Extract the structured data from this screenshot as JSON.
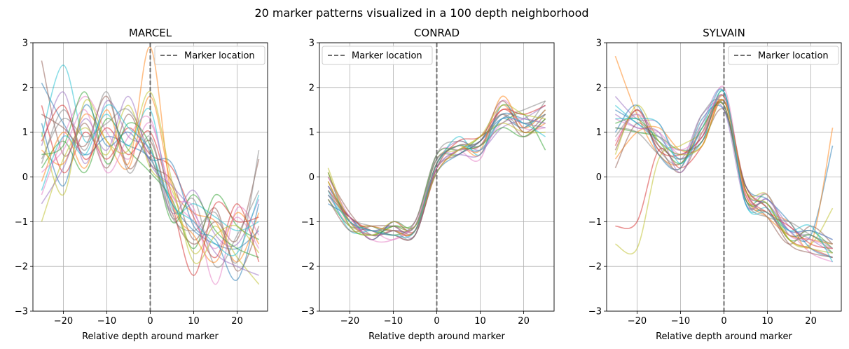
{
  "figure": {
    "title": "20 marker patterns visualized in a 100 depth neighborhood"
  },
  "colors": [
    "#1f77b4",
    "#ff7f0e",
    "#2ca02c",
    "#d62728",
    "#9467bd",
    "#8c564b",
    "#e377c2",
    "#7f7f7f",
    "#bcbd22",
    "#17becf"
  ],
  "chart_data": [
    {
      "type": "line",
      "title": "MARCEL",
      "xlabel": "Relative depth around marker",
      "ylabel": "",
      "xlim": [
        -27,
        27
      ],
      "ylim": [
        -3,
        3
      ],
      "xticks": [
        -20,
        -10,
        0,
        10,
        20
      ],
      "yticks": [
        -3,
        -2,
        -1,
        0,
        1,
        2,
        3
      ],
      "grid": true,
      "legend": {
        "location": "top-right",
        "entries": [
          "Marker location"
        ]
      },
      "marker_x": 0,
      "series_count": 20,
      "x": [
        -25,
        -20,
        -15,
        -10,
        -5,
        0,
        5,
        10,
        15,
        20,
        25
      ],
      "series": [
        {
          "values": [
            2.1,
            1.2,
            0.5,
            0.9,
            0.7,
            0.4,
            -0.6,
            -1.2,
            -1.5,
            -1.6,
            -1.2
          ]
        },
        {
          "values": [
            0.6,
            0.3,
            1.4,
            0.8,
            0.2,
            1.8,
            -0.2,
            -0.8,
            -1.0,
            -1.9,
            -0.8
          ]
        },
        {
          "values": [
            0.2,
            0.8,
            0.1,
            1.3,
            0.6,
            0.1,
            -0.5,
            -1.6,
            -0.4,
            -1.1,
            -1.4
          ]
        },
        {
          "values": [
            1.6,
            0.1,
            1.0,
            0.4,
            1.1,
            0.5,
            0.2,
            -0.9,
            -1.8,
            -0.6,
            -1.9
          ]
        },
        {
          "values": [
            0.7,
            1.9,
            0.3,
            1.7,
            0.9,
            0.6,
            -0.8,
            -0.3,
            -1.3,
            -1.5,
            -0.5
          ]
        },
        {
          "values": [
            2.6,
            0.5,
            1.2,
            0.2,
            1.4,
            0.3,
            -0.1,
            -1.4,
            -0.7,
            -2.1,
            -1.1
          ]
        },
        {
          "values": [
            -0.4,
            0.9,
            1.8,
            1.0,
            0.4,
            1.2,
            -0.4,
            -1.0,
            -1.6,
            -0.9,
            -1.6
          ]
        },
        {
          "values": [
            0.3,
            1.5,
            0.6,
            1.9,
            0.1,
            0.9,
            -0.9,
            -0.5,
            -2.0,
            -1.3,
            -0.3
          ]
        },
        {
          "values": [
            -1.0,
            0.4,
            1.1,
            0.5,
            1.6,
            0.2,
            -0.3,
            -1.7,
            -1.1,
            -1.8,
            -2.4
          ]
        },
        {
          "values": [
            0.9,
            2.5,
            0.8,
            1.4,
            0.7,
            1.5,
            -0.7,
            -0.6,
            -0.9,
            -1.2,
            -1.0
          ]
        },
        {
          "values": [
            1.2,
            -0.2,
            1.6,
            0.7,
            1.0,
            0.4,
            0.3,
            -1.1,
            -1.4,
            -2.3,
            -0.6
          ]
        },
        {
          "values": [
            -0.1,
            1.0,
            0.2,
            1.5,
            0.3,
            2.9,
            -0.5,
            -1.3,
            -1.9,
            -0.8,
            -1.5
          ]
        },
        {
          "values": [
            0.5,
            0.7,
            1.9,
            0.3,
            1.2,
            0.7,
            -1.0,
            -0.4,
            -1.2,
            -1.6,
            -1.8
          ]
        },
        {
          "values": [
            0.8,
            1.6,
            0.4,
            1.1,
            0.5,
            1.0,
            -0.6,
            -2.2,
            -0.6,
            -1.0,
            -0.9
          ]
        },
        {
          "values": [
            -0.6,
            0.2,
            1.3,
            0.6,
            1.8,
            0.3,
            -0.2,
            -0.8,
            -1.7,
            -2.0,
            -2.2
          ]
        },
        {
          "values": [
            1.4,
            1.1,
            0.7,
            1.8,
            0.2,
            0.8,
            -0.8,
            -1.5,
            -1.0,
            -1.4,
            0.4
          ]
        },
        {
          "values": [
            0.1,
            0.6,
            1.5,
            0.1,
            0.9,
            1.3,
            -0.4,
            -0.7,
            -2.4,
            -0.7,
            -1.3
          ]
        },
        {
          "values": [
            0.4,
            1.3,
            0.9,
            1.2,
            1.5,
            0.5,
            -0.9,
            -1.2,
            -0.8,
            -1.9,
            0.6
          ]
        },
        {
          "values": [
            1.0,
            -0.4,
            1.7,
            0.8,
            0.6,
            1.9,
            -0.1,
            -1.9,
            -1.3,
            -1.1,
            -1.7
          ]
        },
        {
          "values": [
            -0.3,
            0.9,
            0.5,
            1.6,
            1.1,
            0.6,
            -0.6,
            -1.0,
            -1.5,
            -1.7,
            -0.4
          ]
        }
      ]
    },
    {
      "type": "line",
      "title": "CONRAD",
      "xlabel": "Relative depth around marker",
      "ylabel": "",
      "xlim": [
        -27,
        27
      ],
      "ylim": [
        -3,
        3
      ],
      "xticks": [
        -20,
        -10,
        0,
        10,
        20
      ],
      "yticks": [
        -3,
        -2,
        -1,
        0,
        1,
        2,
        3
      ],
      "grid": true,
      "legend": {
        "location": "top-left",
        "entries": [
          "Marker location"
        ]
      },
      "marker_x": 0,
      "series_count": 20,
      "x": [
        -25,
        -20,
        -15,
        -10,
        -5,
        0,
        5,
        10,
        15,
        20,
        25
      ],
      "series": [
        {
          "values": [
            -0.2,
            -0.9,
            -1.2,
            -1.1,
            -1.1,
            0.2,
            0.6,
            0.8,
            1.3,
            1.1,
            1.5
          ]
        },
        {
          "values": [
            0.1,
            -1.0,
            -1.3,
            -1.2,
            -1.2,
            0.3,
            0.7,
            0.5,
            1.6,
            1.0,
            1.2
          ]
        },
        {
          "values": [
            -0.5,
            -1.1,
            -1.1,
            -1.3,
            -1.0,
            0.4,
            0.5,
            0.9,
            1.2,
            1.4,
            0.6
          ]
        },
        {
          "values": [
            -0.3,
            -0.9,
            -1.4,
            -1.0,
            -1.2,
            0.1,
            0.6,
            0.7,
            1.5,
            1.2,
            1.4
          ]
        },
        {
          "values": [
            -0.1,
            -1.0,
            -1.2,
            -1.1,
            -1.3,
            0.3,
            0.8,
            0.6,
            1.1,
            1.3,
            1.6
          ]
        },
        {
          "values": [
            0.0,
            -0.8,
            -1.3,
            -1.2,
            -1.1,
            0.2,
            0.5,
            0.8,
            1.4,
            0.9,
            1.3
          ]
        },
        {
          "values": [
            -0.4,
            -1.1,
            -1.2,
            -1.4,
            -1.0,
            0.5,
            0.6,
            0.4,
            1.7,
            1.1,
            1.1
          ]
        },
        {
          "values": [
            -0.2,
            -0.9,
            -1.1,
            -1.2,
            -1.2,
            0.3,
            0.7,
            0.7,
            1.3,
            1.5,
            1.7
          ]
        },
        {
          "values": [
            0.2,
            -1.0,
            -1.3,
            -1.1,
            -1.1,
            0.4,
            0.6,
            0.9,
            1.2,
            1.0,
            1.0
          ]
        },
        {
          "values": [
            -0.3,
            -1.2,
            -1.2,
            -1.3,
            -1.3,
            0.2,
            0.9,
            0.5,
            1.6,
            1.2,
            1.4
          ]
        },
        {
          "values": [
            -0.6,
            -0.9,
            -1.4,
            -1.0,
            -1.1,
            0.1,
            0.5,
            0.8,
            1.4,
            1.3,
            1.2
          ]
        },
        {
          "values": [
            -0.1,
            -1.0,
            -1.1,
            -1.2,
            -1.2,
            0.3,
            0.7,
            0.6,
            1.8,
            1.1,
            1.5
          ]
        },
        {
          "values": [
            0.1,
            -1.1,
            -1.3,
            -1.1,
            -1.0,
            0.5,
            0.6,
            0.7,
            1.1,
            0.9,
            1.3
          ]
        },
        {
          "values": [
            -0.4,
            -0.9,
            -1.2,
            -1.3,
            -1.3,
            0.2,
            0.8,
            0.9,
            1.5,
            1.4,
            1.6
          ]
        },
        {
          "values": [
            -0.2,
            -1.0,
            -1.3,
            -1.2,
            -1.1,
            0.4,
            0.5,
            0.5,
            1.3,
            1.2,
            1.1
          ]
        },
        {
          "values": [
            -0.5,
            -1.2,
            -1.1,
            -1.1,
            -1.2,
            0.3,
            0.7,
            0.8,
            1.7,
            1.0,
            1.4
          ]
        },
        {
          "values": [
            0.0,
            -0.9,
            -1.4,
            -1.4,
            -1.0,
            0.2,
            0.6,
            0.6,
            1.2,
            1.3,
            1.2
          ]
        },
        {
          "values": [
            -0.3,
            -1.0,
            -1.2,
            -1.2,
            -1.3,
            0.5,
            0.8,
            0.7,
            1.4,
            1.1,
            1.7
          ]
        },
        {
          "values": [
            -0.1,
            -1.1,
            -1.3,
            -1.0,
            -1.1,
            0.1,
            0.6,
            0.9,
            1.6,
            1.4,
            1.3
          ]
        },
        {
          "values": [
            -0.4,
            -1.0,
            -1.2,
            -1.3,
            -1.2,
            0.3,
            0.7,
            0.6,
            1.3,
            1.2,
            0.9
          ]
        }
      ]
    },
    {
      "type": "line",
      "title": "SYLVAIN",
      "xlabel": "Relative depth around marker",
      "ylabel": "",
      "xlim": [
        -27,
        27
      ],
      "ylim": [
        -3,
        3
      ],
      "xticks": [
        -20,
        -10,
        0,
        10,
        20
      ],
      "yticks": [
        -3,
        -2,
        -1,
        0,
        1,
        2,
        3
      ],
      "grid": true,
      "legend": {
        "location": "top-right",
        "entries": [
          "Marker location"
        ]
      },
      "marker_x": 0,
      "series_count": 20,
      "x": [
        -25,
        -20,
        -15,
        -10,
        -5,
        0,
        5,
        10,
        15,
        20,
        25
      ],
      "series": [
        {
          "values": [
            1.5,
            1.2,
            0.8,
            0.5,
            0.9,
            1.8,
            -0.3,
            -0.6,
            -1.2,
            -1.3,
            0.7
          ]
        },
        {
          "values": [
            2.7,
            1.4,
            0.5,
            0.3,
            1.1,
            1.6,
            -0.4,
            -0.8,
            -1.0,
            -1.5,
            1.1
          ]
        },
        {
          "values": [
            1.1,
            1.0,
            0.9,
            0.6,
            0.8,
            1.9,
            -0.5,
            -0.4,
            -1.3,
            -1.2,
            -1.6
          ]
        },
        {
          "values": [
            -1.1,
            -1.0,
            0.6,
            0.2,
            0.7,
            1.7,
            -0.2,
            -0.7,
            -1.4,
            -1.6,
            -1.8
          ]
        },
        {
          "values": [
            1.8,
            1.3,
            1.2,
            0.4,
            1.4,
            1.5,
            -0.6,
            -0.5,
            -1.1,
            -1.4,
            -1.7
          ]
        },
        {
          "values": [
            0.6,
            1.5,
            0.7,
            0.1,
            1.0,
            1.8,
            -0.3,
            -0.9,
            -1.5,
            -1.1,
            -1.5
          ]
        },
        {
          "values": [
            1.3,
            1.1,
            1.0,
            0.5,
            0.9,
            2.0,
            -0.4,
            -0.6,
            -1.2,
            -1.7,
            -1.9
          ]
        },
        {
          "values": [
            0.9,
            1.4,
            0.6,
            0.3,
            1.2,
            1.6,
            -0.5,
            -0.8,
            -1.3,
            -1.3,
            -1.6
          ]
        },
        {
          "values": [
            -1.5,
            -1.6,
            0.4,
            0.7,
            1.0,
            1.7,
            -0.3,
            -0.4,
            -1.4,
            -1.5,
            -0.7
          ]
        },
        {
          "values": [
            1.6,
            1.2,
            0.9,
            0.4,
            0.8,
            1.9,
            -0.6,
            -0.7,
            -1.2,
            -1.2,
            -1.4
          ]
        },
        {
          "values": [
            1.0,
            1.6,
            0.5,
            0.2,
            1.3,
            1.5,
            -0.2,
            -0.5,
            -1.0,
            -1.6,
            -1.8
          ]
        },
        {
          "values": [
            0.4,
            1.0,
            1.1,
            0.6,
            0.7,
            1.8,
            -0.4,
            -0.9,
            -1.3,
            -1.4,
            -1.5
          ]
        },
        {
          "values": [
            1.2,
            1.3,
            0.8,
            0.3,
            1.1,
            1.6,
            -0.5,
            -0.6,
            -1.4,
            -1.3,
            -1.7
          ]
        },
        {
          "values": [
            0.7,
            1.5,
            0.6,
            0.5,
            0.9,
            1.7,
            -0.3,
            -0.8,
            -1.1,
            -1.5,
            -1.6
          ]
        },
        {
          "values": [
            1.4,
            1.1,
            1.0,
            0.1,
            1.2,
            1.9,
            -0.6,
            -0.5,
            -1.2,
            -1.2,
            -1.4
          ]
        },
        {
          "values": [
            0.2,
            1.2,
            0.7,
            0.4,
            0.8,
            1.5,
            -0.2,
            -0.7,
            -1.5,
            -1.7,
            -1.8
          ]
        },
        {
          "values": [
            0.8,
            1.4,
            0.9,
            0.6,
            1.0,
            1.8,
            -0.4,
            -0.4,
            -1.3,
            -1.4,
            -1.6
          ]
        },
        {
          "values": [
            1.1,
            1.0,
            0.5,
            0.2,
            1.4,
            1.6,
            -0.5,
            -0.9,
            -1.0,
            -1.3,
            -1.5
          ]
        },
        {
          "values": [
            0.5,
            1.6,
            0.8,
            0.5,
            0.7,
            1.7,
            -0.3,
            -0.6,
            -1.4,
            -1.6,
            -1.7
          ]
        },
        {
          "values": [
            1.3,
            1.3,
            1.2,
            0.3,
            1.1,
            1.9,
            -0.6,
            -0.8,
            -1.2,
            -1.1,
            -1.9
          ]
        }
      ]
    }
  ]
}
